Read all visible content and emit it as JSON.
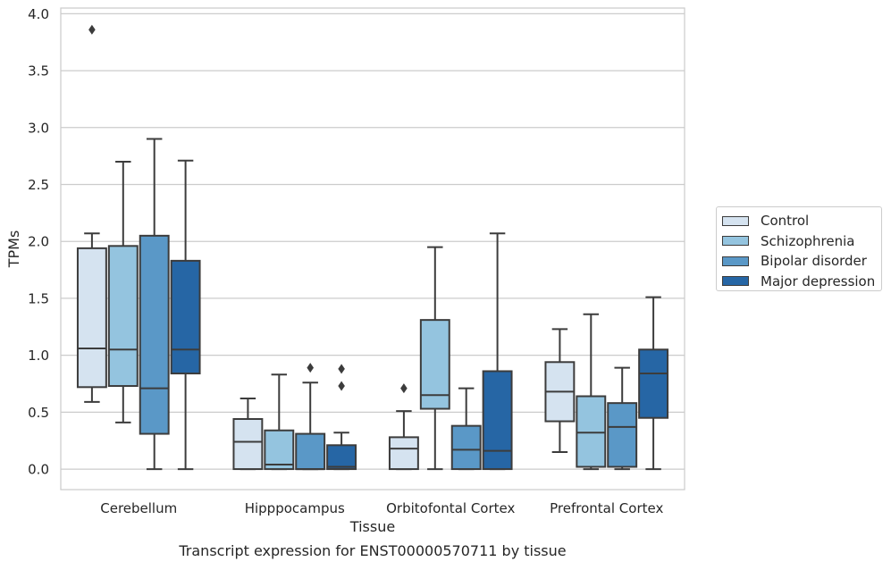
{
  "chart_data": {
    "type": "box",
    "xlabel": "Tissue",
    "ylabel": "TPMs",
    "caption": "Transcript expression for ENST00000570711 by tissue",
    "ylim": [
      -0.18,
      4.05
    ],
    "yticks": [
      0.0,
      0.5,
      1.0,
      1.5,
      2.0,
      2.5,
      3.0,
      3.5,
      4.0
    ],
    "ytick_labels": [
      "0.0",
      "0.5",
      "1.0",
      "1.5",
      "2.0",
      "2.5",
      "3.0",
      "3.5",
      "4.0"
    ],
    "grid": "horizontal",
    "legend_position": "right",
    "categories": [
      "Cerebellum",
      "Hipppocampus",
      "Orbitofontal Cortex",
      "Prefrontal Cortex"
    ],
    "series": [
      {
        "name": "Control",
        "color": "#d5e3f0",
        "boxes": [
          {
            "whislo": 0.59,
            "q1": 0.72,
            "med": 1.06,
            "q3": 1.94,
            "whishi": 2.07,
            "fliers": [
              3.86
            ]
          },
          {
            "whislo": 0.0,
            "q1": 0.0,
            "med": 0.24,
            "q3": 0.44,
            "whishi": 0.62,
            "fliers": []
          },
          {
            "whislo": 0.0,
            "q1": 0.0,
            "med": 0.18,
            "q3": 0.28,
            "whishi": 0.51,
            "fliers": [
              0.71
            ]
          },
          {
            "whislo": 0.15,
            "q1": 0.42,
            "med": 0.68,
            "q3": 0.94,
            "whishi": 1.23,
            "fliers": []
          }
        ]
      },
      {
        "name": "Schizophrenia",
        "color": "#94c4df",
        "boxes": [
          {
            "whislo": 0.41,
            "q1": 0.73,
            "med": 1.05,
            "q3": 1.96,
            "whishi": 2.7,
            "fliers": []
          },
          {
            "whislo": 0.0,
            "q1": 0.0,
            "med": 0.04,
            "q3": 0.34,
            "whishi": 0.83,
            "fliers": []
          },
          {
            "whislo": 0.0,
            "q1": 0.53,
            "med": 0.65,
            "q3": 1.31,
            "whishi": 1.95,
            "fliers": []
          },
          {
            "whislo": 0.0,
            "q1": 0.02,
            "med": 0.32,
            "q3": 0.64,
            "whishi": 1.36,
            "fliers": []
          }
        ]
      },
      {
        "name": "Bipolar disorder",
        "color": "#5a98c7",
        "boxes": [
          {
            "whislo": 0.0,
            "q1": 0.31,
            "med": 0.71,
            "q3": 2.05,
            "whishi": 2.9,
            "fliers": []
          },
          {
            "whislo": 0.0,
            "q1": 0.0,
            "med": 0.0,
            "q3": 0.31,
            "whishi": 0.76,
            "fliers": [
              0.89
            ]
          },
          {
            "whislo": 0.0,
            "q1": 0.0,
            "med": 0.17,
            "q3": 0.38,
            "whishi": 0.71,
            "fliers": []
          },
          {
            "whislo": 0.0,
            "q1": 0.02,
            "med": 0.37,
            "q3": 0.58,
            "whishi": 0.89,
            "fliers": []
          }
        ]
      },
      {
        "name": "Major depression",
        "color": "#2666a5",
        "boxes": [
          {
            "whislo": 0.0,
            "q1": 0.84,
            "med": 1.05,
            "q3": 1.83,
            "whishi": 2.71,
            "fliers": []
          },
          {
            "whislo": 0.0,
            "q1": 0.0,
            "med": 0.02,
            "q3": 0.21,
            "whishi": 0.32,
            "fliers": [
              0.73,
              0.88
            ]
          },
          {
            "whislo": 0.0,
            "q1": 0.0,
            "med": 0.16,
            "q3": 0.86,
            "whishi": 2.07,
            "fliers": []
          },
          {
            "whislo": 0.0,
            "q1": 0.45,
            "med": 0.84,
            "q3": 1.05,
            "whishi": 1.51,
            "fliers": []
          }
        ]
      }
    ]
  }
}
